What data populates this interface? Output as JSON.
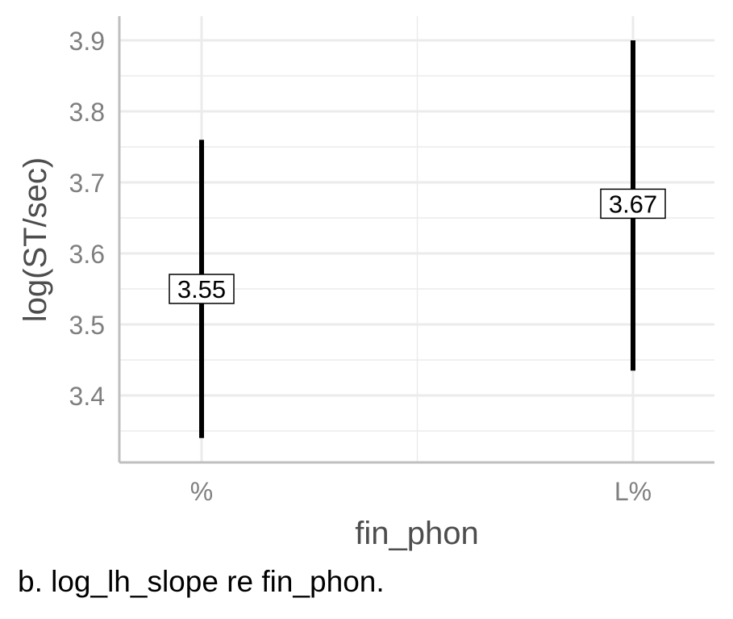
{
  "chart_data": {
    "type": "errorbar",
    "xlabel": "fin_phon",
    "ylabel": "log(ST/sec)",
    "categories": [
      "%",
      "L%"
    ],
    "estimates": [
      3.55,
      3.67
    ],
    "lower": [
      3.34,
      3.435
    ],
    "upper": [
      3.76,
      3.9
    ],
    "labels": [
      "3.55",
      "3.67"
    ],
    "ylim": [
      3.3,
      3.92
    ],
    "yticks": [
      3.4,
      3.5,
      3.6,
      3.7,
      3.8,
      3.9
    ],
    "ytick_labels": [
      "3.4",
      "3.5",
      "3.6",
      "3.7",
      "3.8",
      "3.9"
    ],
    "grid": true,
    "colors": {
      "bar": "#000000",
      "grid": "#ebebeb",
      "tick_text": "#7f7f7f",
      "axis_title": "#4d4d4d"
    }
  },
  "caption": "b.  log_lh_slope re fin_phon."
}
